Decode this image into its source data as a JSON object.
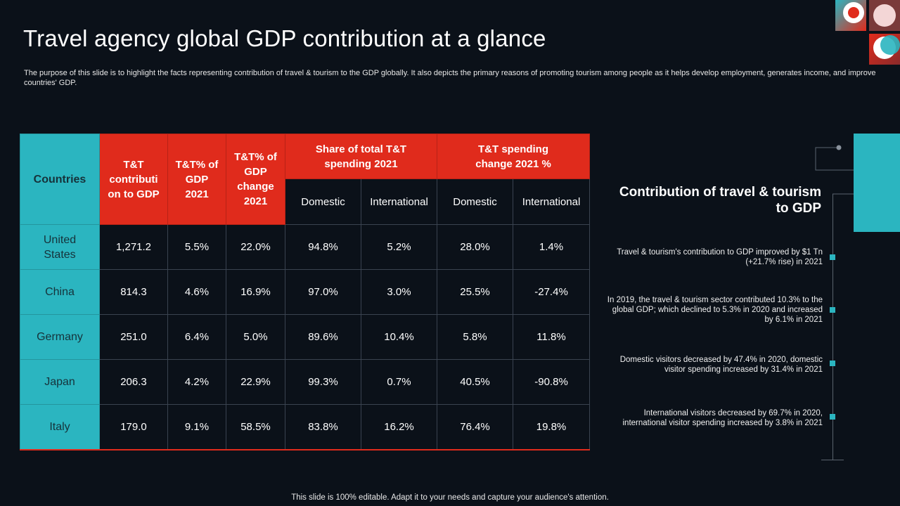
{
  "title": "Travel agency global GDP contribution at a glance",
  "description": "The purpose of this slide is to highlight the facts representing contribution of travel & tourism to the GDP globally. It also depicts the primary reasons of promoting tourism among people as it helps develop employment, generates income, and improve countries' GDP.",
  "table": {
    "headers": {
      "countries": "Countries",
      "tt_contribution": "T&T contributi on to GDP",
      "tt_pct_2021": "T&T% of GDP 2021",
      "tt_pct_change": "T&T% of GDP change 2021",
      "share_spending": "Share of total T&T spending 2021",
      "spending_change": "T&T spending change 2021 %",
      "domestic": "Domestic",
      "international": "International"
    },
    "rows": [
      {
        "country": "United States",
        "contribution": "1,271.2",
        "pct_2021": "5.5%",
        "pct_change": "22.0%",
        "share_dom": "94.8%",
        "share_int": "5.2%",
        "chg_dom": "28.0%",
        "chg_int": "1.4%"
      },
      {
        "country": "China",
        "contribution": "814.3",
        "pct_2021": "4.6%",
        "pct_change": "16.9%",
        "share_dom": "97.0%",
        "share_int": "3.0%",
        "chg_dom": "25.5%",
        "chg_int": "-27.4%"
      },
      {
        "country": "Germany",
        "contribution": "251.0",
        "pct_2021": "6.4%",
        "pct_change": "5.0%",
        "share_dom": "89.6%",
        "share_int": "10.4%",
        "chg_dom": "5.8%",
        "chg_int": "11.8%"
      },
      {
        "country": "Japan",
        "contribution": "206.3",
        "pct_2021": "4.2%",
        "pct_change": "22.9%",
        "share_dom": "99.3%",
        "share_int": "0.7%",
        "chg_dom": "40.5%",
        "chg_int": "-90.8%"
      },
      {
        "country": "Italy",
        "contribution": "179.0",
        "pct_2021": "9.1%",
        "pct_change": "58.5%",
        "share_dom": "83.8%",
        "share_int": "16.2%",
        "chg_dom": "76.4%",
        "chg_int": "19.8%"
      }
    ]
  },
  "side": {
    "title": "Contribution of travel & tourism to GDP",
    "facts": [
      "Travel & tourism's contribution to GDP improved by $1 Tn (+21.7% rise) in 2021",
      "In 2019, the travel & tourism sector contributed 10.3% to the global GDP; which declined to 5.3% in 2020 and increased by 6.1% in 2021",
      "Domestic visitors decreased by 47.4% in 2020, domestic visitor spending increased by 31.4% in 2021",
      "International visitors decreased by 69.7% in 2020, international visitor spending increased by 3.8% in 2021"
    ]
  },
  "footer": "This slide is 100% editable. Adapt it to your needs and capture your audience's attention.",
  "colors": {
    "accent_red": "#e02b1c",
    "accent_teal": "#2bb5c0",
    "background": "#0b1119"
  }
}
